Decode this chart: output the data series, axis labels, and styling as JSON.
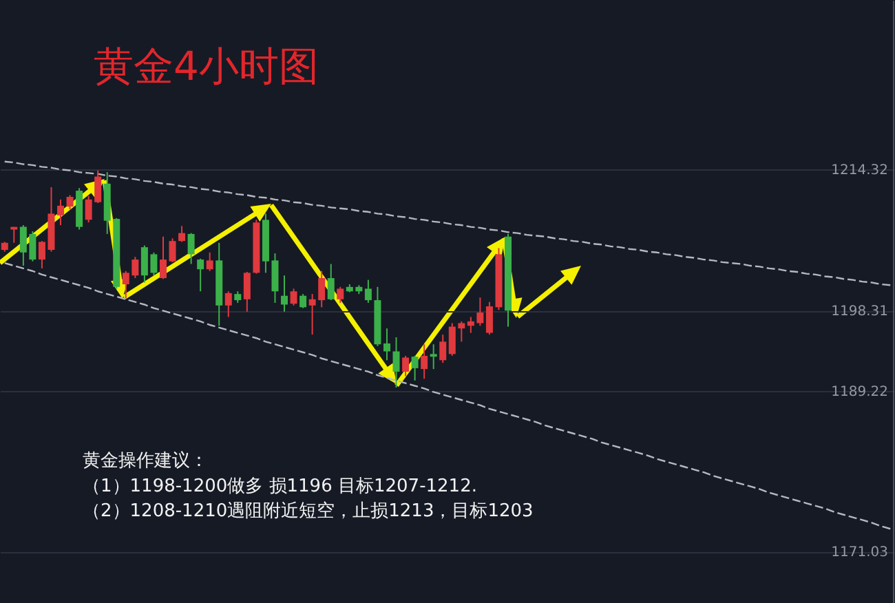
{
  "chart_data": {
    "type": "candlestick",
    "title": "黄金4小时图",
    "categories": [
      null,
      null,
      null,
      null,
      null,
      null,
      null,
      null,
      null,
      null,
      null,
      null,
      null,
      null,
      null,
      null,
      null,
      null,
      null,
      null,
      null,
      null,
      null,
      null,
      null,
      null,
      null,
      null,
      null,
      null,
      null,
      null,
      null,
      null,
      null,
      null,
      null,
      null,
      null,
      null,
      null,
      null,
      null,
      null,
      null,
      null,
      null,
      null,
      null,
      null,
      null,
      null,
      null,
      null,
      null,
      null,
      null,
      null,
      null,
      null,
      null,
      null,
      null,
      null,
      null,
      null,
      null,
      null,
      null,
      null,
      null,
      null,
      null,
      null,
      null,
      null,
      null,
      null,
      null,
      null,
      null,
      null,
      null,
      null,
      null,
      null,
      null,
      null,
      null,
      null,
      null,
      null,
      null,
      null,
      null,
      null
    ],
    "ohlc": [
      [
        1205.2,
        1206.1,
        1205.0,
        1206.0
      ],
      [
        1207.5,
        1207.8,
        1206.0,
        1207.8
      ],
      [
        1207.8,
        1208.0,
        1203.4,
        1204.9
      ],
      [
        1207.0,
        1207.3,
        1203.9,
        1204.1
      ],
      [
        1204.1,
        1206.2,
        1203.1,
        1206.1
      ],
      [
        1205.2,
        1212.3,
        1205.0,
        1209.3
      ],
      [
        1209.1,
        1210.9,
        1208.0,
        1210.2
      ],
      [
        1210.1,
        1211.4,
        1209.8,
        1211.2
      ],
      [
        1211.9,
        1212.2,
        1207.5,
        1207.8
      ],
      [
        1208.6,
        1211.3,
        1208.3,
        1210.9
      ],
      [
        1210.6,
        1214.2,
        1210.5,
        1213.5
      ],
      [
        1212.7,
        1214.0,
        1207.0,
        1208.5
      ],
      [
        1208.7,
        1208.8,
        1200.8,
        1201.0
      ],
      [
        1201.3,
        1202.8,
        1199.7,
        1202.6
      ],
      [
        1202.3,
        1204.4,
        1202.0,
        1204.1
      ],
      [
        1205.5,
        1205.7,
        1201.5,
        1202.3
      ],
      [
        1204.7,
        1204.9,
        1202.3,
        1202.6
      ],
      [
        1202.0,
        1206.7,
        1201.9,
        1204.1
      ],
      [
        1203.9,
        1206.5,
        1203.8,
        1206.2
      ],
      [
        1206.2,
        1207.9,
        1206.1,
        1207.1
      ],
      [
        1207.0,
        1207.1,
        1203.6,
        1204.7
      ],
      [
        1204.1,
        1204.2,
        1200.5,
        1203.0
      ],
      [
        1203.0,
        1204.9,
        1202.8,
        1204.0
      ],
      [
        1204.0,
        1206.0,
        1196.6,
        1198.9
      ],
      [
        1198.9,
        1200.5,
        1197.6,
        1200.3
      ],
      [
        1200.2,
        1200.5,
        1199.2,
        1199.5
      ],
      [
        1199.6,
        1202.7,
        1198.2,
        1202.6
      ],
      [
        1202.6,
        1208.6,
        1202.5,
        1208.3
      ],
      [
        1208.6,
        1209.3,
        1202.6,
        1203.9
      ],
      [
        1204.0,
        1204.8,
        1199.2,
        1200.5
      ],
      [
        1200.0,
        1202.3,
        1198.2,
        1199.0
      ],
      [
        1199.1,
        1200.8,
        1198.9,
        1200.5
      ],
      [
        1200.0,
        1200.2,
        1198.6,
        1198.7
      ],
      [
        1198.9,
        1200.2,
        1195.6,
        1199.6
      ],
      [
        1199.5,
        1202.8,
        1198.7,
        1202.0
      ],
      [
        1202.0,
        1203.6,
        1199.5,
        1199.6
      ],
      [
        1199.6,
        1201.0,
        1199.2,
        1200.8
      ],
      [
        1201.0,
        1201.3,
        1200.4,
        1200.5
      ],
      [
        1201.0,
        1201.2,
        1200.2,
        1200.5
      ],
      [
        1200.8,
        1201.8,
        1199.2,
        1199.5
      ],
      [
        1199.5,
        1201.0,
        1194.3,
        1194.5
      ],
      [
        1194.6,
        1196.3,
        1192.7,
        1193.7
      ],
      [
        1193.7,
        1195.3,
        1189.6,
        1191.4
      ],
      [
        1191.4,
        1193.2,
        1190.9,
        1193.0
      ],
      [
        1193.1,
        1193.2,
        1190.4,
        1191.8
      ],
      [
        1191.7,
        1194.5,
        1190.6,
        1193.2
      ],
      [
        1193.4,
        1194.5,
        1191.7,
        1193.1
      ],
      [
        1192.7,
        1195.6,
        1192.4,
        1194.8
      ],
      [
        1193.4,
        1196.9,
        1193.2,
        1196.5
      ],
      [
        1196.3,
        1197.1,
        1194.8,
        1196.9
      ],
      [
        1196.6,
        1197.6,
        1195.8,
        1197.1
      ],
      [
        1196.9,
        1199.8,
        1196.6,
        1198.1
      ],
      [
        1195.8,
        1199.3,
        1195.6,
        1198.8
      ],
      [
        1198.7,
        1205.4,
        1198.4,
        1204.7
      ],
      [
        1206.7,
        1207.0,
        1196.5,
        1198.31
      ],
      null,
      null,
      null,
      null,
      null,
      null,
      null,
      null,
      null,
      null,
      null,
      null,
      null,
      null,
      null,
      null,
      null,
      null,
      null,
      null,
      null,
      null,
      null,
      null,
      null,
      null,
      null,
      null,
      null,
      null,
      null,
      null,
      null,
      null,
      null,
      null,
      null,
      null,
      null,
      null,
      null
    ],
    "colors": [
      "#e0393e",
      "#e0393e",
      "#3cb14a",
      "#3cb14a",
      "#e0393e",
      "#e0393e",
      "#e0393e",
      "#e0393e",
      "#3cb14a",
      "#e0393e",
      "#e0393e",
      "#3cb14a",
      "#3cb14a",
      "#e0393e",
      "#e0393e",
      "#3cb14a",
      "#3cb14a",
      "#e0393e",
      "#e0393e",
      "#e0393e",
      "#3cb14a",
      "#3cb14a",
      "#e0393e",
      "#3cb14a",
      "#e0393e",
      "#3cb14a",
      "#e0393e",
      "#e0393e",
      "#3cb14a",
      "#3cb14a",
      "#3cb14a",
      "#e0393e",
      "#3cb14a",
      "#e0393e",
      "#e0393e",
      "#3cb14a",
      "#e0393e",
      "#3cb14a",
      "#3cb14a",
      "#3cb14a",
      "#3cb14a",
      "#3cb14a",
      "#3cb14a",
      "#e0393e",
      "#3cb14a",
      "#e0393e",
      "#3cb14a",
      "#e0393e",
      "#e0393e",
      "#e0393e",
      "#e0393e",
      "#e0393e",
      "#e0393e",
      "#e0393e",
      "#3cb14a",
      null,
      null,
      null,
      null,
      null,
      null,
      null,
      null,
      null,
      null,
      null,
      null,
      null,
      null,
      null,
      null,
      null,
      null,
      null,
      null,
      null,
      null,
      null,
      null,
      null,
      null,
      null,
      null,
      null,
      null,
      null,
      null,
      null,
      null,
      null,
      null,
      null,
      null,
      null,
      null,
      null
    ],
    "series": [
      {
        "type": "line",
        "color": "#b4b8c0",
        "values": [
          1215.2,
          1215.1,
          1214.9,
          1214.8,
          1214.6,
          1214.5,
          1214.3,
          1214.2,
          1214.0,
          1213.9,
          1213.8,
          1213.6,
          1213.5,
          1213.3,
          1213.2,
          1213.0,
          1212.9,
          1212.7,
          1212.6,
          1212.4,
          1212.3,
          1212.1,
          1212.0,
          1211.8,
          1211.7,
          1211.5,
          1211.4,
          1211.2,
          1211.1,
          1210.9,
          1210.8,
          1210.6,
          1210.5,
          1210.3,
          1210.2,
          1210.0,
          1209.9,
          1209.8,
          1209.6,
          1209.5,
          1209.3,
          1209.2,
          1209.0,
          1208.9,
          1208.7,
          1208.6,
          1208.4,
          1208.3,
          1208.1,
          1208.0,
          1207.8,
          1207.7,
          1207.5,
          1207.4,
          1207.2,
          1207.1,
          1206.9,
          1206.8,
          1206.7,
          1206.5,
          1206.4,
          1206.2,
          1206.1,
          1205.9,
          1205.8,
          1205.6,
          1205.5,
          1205.3,
          1205.2,
          1205.0,
          1204.9,
          1204.7,
          1204.6,
          1204.4,
          1204.3,
          1204.1,
          1204.0,
          1203.8,
          1203.7,
          1203.6,
          1203.4,
          1203.3,
          1203.1,
          1203.0,
          1202.8,
          1202.7,
          1202.5,
          1202.4,
          1202.2,
          1202.1,
          1201.9,
          1201.8,
          1201.6,
          1201.5,
          1201.3,
          1201.2
        ]
      },
      {
        "type": "line",
        "color": "#b4b8c0",
        "values": [
          1203.7,
          1203.4,
          1203.1,
          1202.8,
          1202.4,
          1202.1,
          1201.8,
          1201.5,
          1201.2,
          1200.9,
          1200.5,
          1200.2,
          1199.9,
          1199.6,
          1199.3,
          1199.0,
          1198.6,
          1198.3,
          1198.0,
          1197.7,
          1197.4,
          1197.1,
          1196.7,
          1196.4,
          1196.1,
          1195.8,
          1195.5,
          1195.2,
          1194.8,
          1194.5,
          1194.2,
          1193.9,
          1193.6,
          1193.3,
          1192.9,
          1192.6,
          1192.3,
          1192.0,
          1191.7,
          1191.4,
          1191.0,
          1190.7,
          1190.4,
          1190.1,
          1189.8,
          1189.5,
          1189.1,
          1188.8,
          1188.5,
          1188.2,
          1187.9,
          1187.6,
          1187.2,
          1186.9,
          1186.6,
          1186.3,
          1186.0,
          1185.7,
          1185.3,
          1185.0,
          1184.7,
          1184.4,
          1184.1,
          1183.8,
          1183.4,
          1183.1,
          1182.8,
          1182.5,
          1182.2,
          1181.9,
          1181.5,
          1181.2,
          1180.9,
          1180.6,
          1180.3,
          1180.0,
          1179.6,
          1179.3,
          1179.0,
          1178.7,
          1178.4,
          1178.1,
          1177.7,
          1177.4,
          1177.1,
          1176.8,
          1176.5,
          1176.2,
          1175.9,
          1175.5,
          1175.2,
          1174.9,
          1174.6,
          1174.3,
          1173.9,
          1173.6
        ]
      }
    ],
    "line_style": "dashed",
    "ylim": [
      1165.2,
      1233.5
    ],
    "yticks": [
      1171.03,
      1189.22,
      1198.31,
      1214.32
    ],
    "grid": "y",
    "tick_labels": "y",
    "annotations": [
      "黄金操作建议：",
      "（1）1198-1200做多 损1196 目标1207-1212.",
      "（2）1208-1210遇阻附近短空，止损1213，目标1203"
    ]
  }
}
